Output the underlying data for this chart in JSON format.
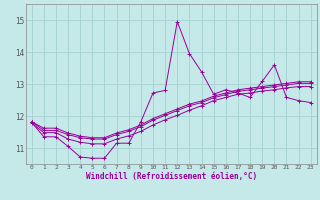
{
  "xlabel": "Windchill (Refroidissement éolien,°C)",
  "background_color": "#c5e8e8",
  "line_color": "#990099",
  "grid_color": "#a8d4d4",
  "xlim": [
    -0.5,
    23.5
  ],
  "ylim": [
    10.5,
    15.5
  ],
  "yticks": [
    11,
    12,
    13,
    14,
    15
  ],
  "xticks": [
    0,
    1,
    2,
    3,
    4,
    5,
    6,
    7,
    8,
    9,
    10,
    11,
    12,
    13,
    14,
    15,
    16,
    17,
    18,
    19,
    20,
    21,
    22,
    23
  ],
  "series": [
    [
      11.8,
      11.35,
      11.35,
      11.05,
      10.72,
      10.68,
      10.68,
      11.15,
      11.15,
      11.82,
      12.72,
      12.8,
      14.95,
      13.95,
      13.38,
      12.68,
      12.82,
      12.72,
      12.58,
      13.08,
      13.6,
      12.58,
      12.48,
      12.42
    ],
    [
      11.78,
      11.48,
      11.48,
      11.28,
      11.18,
      11.13,
      11.13,
      11.28,
      11.38,
      11.52,
      11.72,
      11.88,
      12.02,
      12.18,
      12.32,
      12.48,
      12.58,
      12.68,
      12.72,
      12.78,
      12.82,
      12.88,
      12.92,
      12.92
    ],
    [
      11.82,
      11.55,
      11.55,
      11.42,
      11.32,
      11.28,
      11.28,
      11.42,
      11.52,
      11.67,
      11.87,
      12.02,
      12.17,
      12.32,
      12.42,
      12.57,
      12.67,
      12.77,
      12.82,
      12.87,
      12.92,
      12.97,
      13.02,
      13.02
    ],
    [
      11.82,
      11.62,
      11.62,
      11.47,
      11.37,
      11.32,
      11.32,
      11.47,
      11.57,
      11.72,
      11.92,
      12.07,
      12.22,
      12.37,
      12.47,
      12.62,
      12.72,
      12.82,
      12.87,
      12.92,
      12.97,
      13.02,
      13.07,
      13.07
    ]
  ]
}
